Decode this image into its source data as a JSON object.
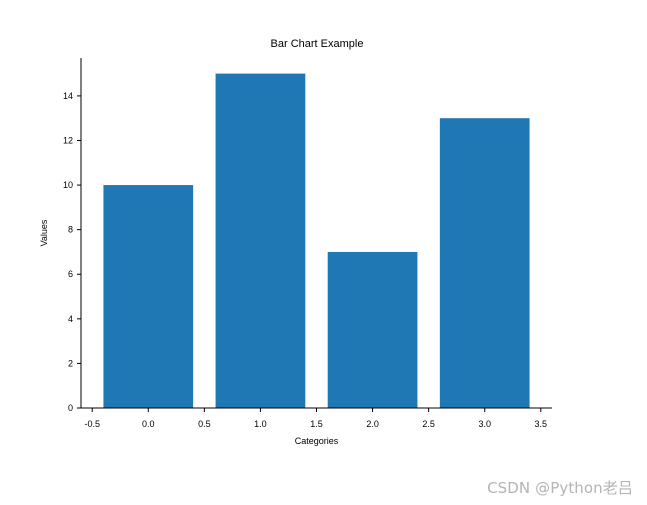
{
  "chart_data": {
    "type": "bar",
    "title": "Bar Chart Example",
    "xlabel": "Categories",
    "ylabel": "Values",
    "x": [
      0,
      1,
      2,
      3
    ],
    "values": [
      10,
      15,
      7,
      13
    ],
    "bar_width": 0.8,
    "bar_color": "#1f77b4",
    "xlim": [
      -0.6,
      3.6
    ],
    "ylim": [
      0,
      15.7
    ],
    "xticks": [
      -0.5,
      0.0,
      0.5,
      1.0,
      1.5,
      2.0,
      2.5,
      3.0,
      3.5
    ],
    "xtick_labels": [
      "-0.5",
      "0.0",
      "0.5",
      "1.0",
      "1.5",
      "2.0",
      "2.5",
      "3.0",
      "3.5"
    ],
    "yticks": [
      0,
      2,
      4,
      6,
      8,
      10,
      12,
      14
    ],
    "ytick_labels": [
      "0",
      "2",
      "4",
      "6",
      "8",
      "10",
      "12",
      "14"
    ],
    "grid": false,
    "legend": "none"
  },
  "watermark": "CSDN @Python老吕"
}
